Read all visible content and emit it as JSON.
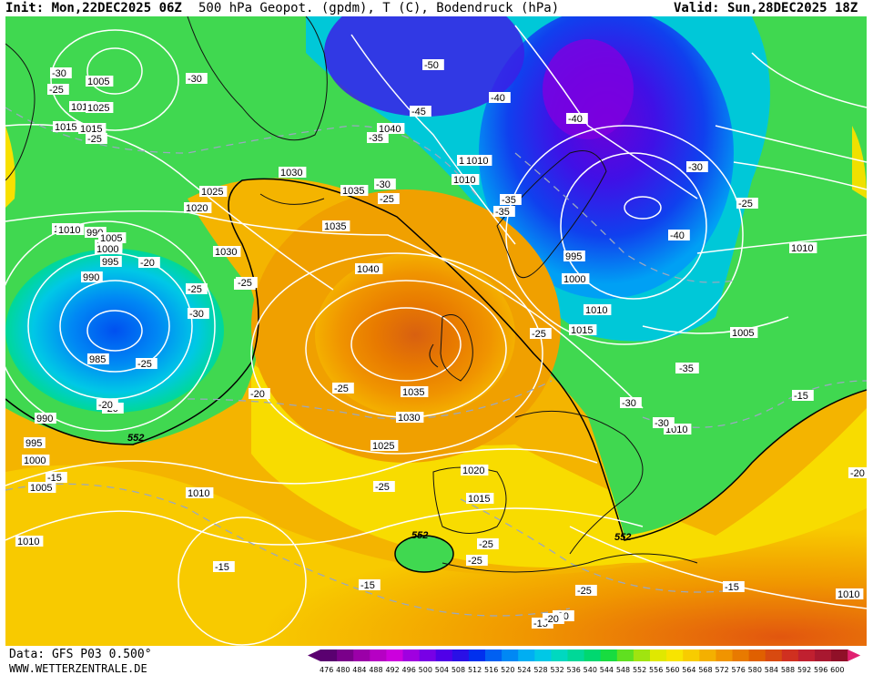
{
  "header": {
    "init": "Init: Mon,22DEC2025 06Z",
    "title": "500 hPa Geopot. (gpdm), T (C), Bodendruck (hPa)",
    "valid": "Valid: Sun,28DEC2025 18Z"
  },
  "footer": {
    "data_source": "Data: GFS P03 0.500°",
    "site": "WWW.WETTERZENTRALE.DE"
  },
  "legend": {
    "ticks": [
      "476",
      "480",
      "484",
      "488",
      "492",
      "496",
      "500",
      "504",
      "508",
      "512",
      "516",
      "520",
      "524",
      "528",
      "532",
      "536",
      "540",
      "544",
      "548",
      "552",
      "556",
      "560",
      "564",
      "568",
      "572",
      "576",
      "580",
      "584",
      "588",
      "592",
      "596",
      "600"
    ],
    "colors": [
      "#5a0070",
      "#7a008a",
      "#9b00a8",
      "#b600c4",
      "#cc00dd",
      "#a000e0",
      "#7800e6",
      "#5000e8",
      "#2a10e6",
      "#0030ee",
      "#0060f2",
      "#0088f4",
      "#00aef2",
      "#00c8e6",
      "#00d8c0",
      "#00d898",
      "#00d870",
      "#18dc40",
      "#60e020",
      "#a0e410",
      "#e0e800",
      "#f8e400",
      "#f8cc00",
      "#f4b000",
      "#f09400",
      "#e87a00",
      "#e06000",
      "#d84a10",
      "#d03020",
      "#c02030",
      "#a81830",
      "#901028"
    ]
  },
  "isobar_labels": [
    "1005",
    "1010",
    "1015",
    "1025",
    "1020",
    "1030",
    "1040",
    "1035",
    "1010",
    "990",
    "1000",
    "1030",
    "1025",
    "1020",
    "1010",
    "1010",
    "1010",
    "1015",
    "1005",
    "1000",
    "995",
    "990",
    "985",
    "990",
    "995",
    "1000",
    "1005",
    "1035",
    "1040",
    "1035",
    "1030",
    "1025",
    "1020",
    "1015",
    "1010",
    "1010",
    "995",
    "1000",
    "1010",
    "1015",
    "1005",
    "1010",
    "1010",
    "1010"
  ],
  "temperature_labels": [
    "-30",
    "-25",
    "-25",
    "-30",
    "-50",
    "-40",
    "-35",
    "-45",
    "-40",
    "-35",
    "-30",
    "-25",
    "-35",
    "-25",
    "-30",
    "-40",
    "-30",
    "-35",
    "-25",
    "-20",
    "-20",
    "-25",
    "-15",
    "-20",
    "-25",
    "-30",
    "-25",
    "-25",
    "-35",
    "-30",
    "-25",
    "-20",
    "-15",
    "-15",
    "-15",
    "-25",
    "-25",
    "-20",
    "-15",
    "-25",
    "-15",
    "-20",
    "-20",
    "-35",
    "-25"
  ],
  "height_labels": [
    "552",
    "552",
    "552"
  ]
}
